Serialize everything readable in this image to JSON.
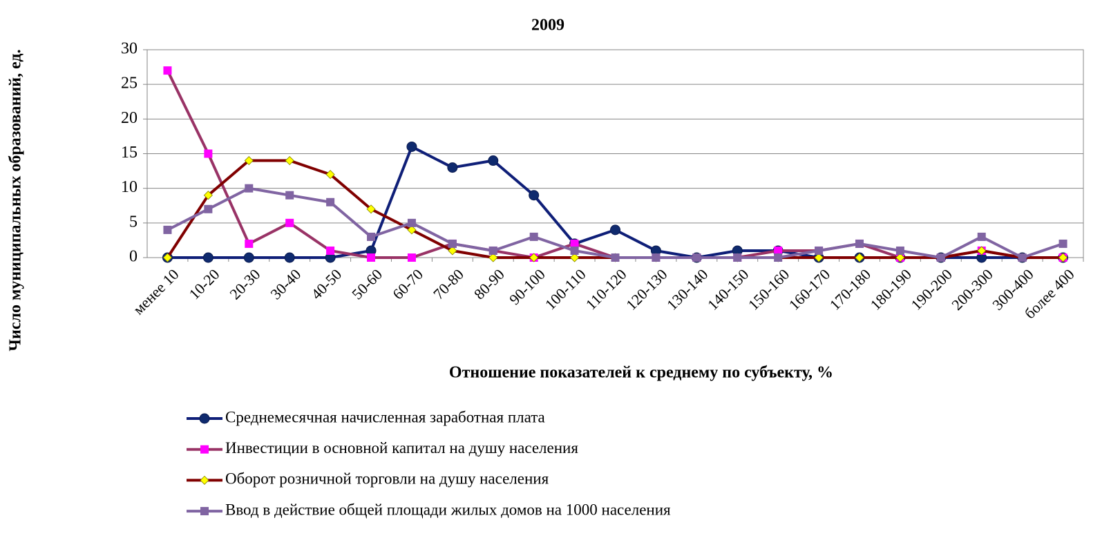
{
  "chart_data": {
    "type": "line",
    "title": "2009",
    "x_label": "Отношение показателей к среднему по субъекту, %",
    "y_label": "Число муниципальных образований, ед.",
    "categories": [
      "менее 10",
      "10-20",
      "20-30",
      "30-40",
      "40-50",
      "50-60",
      "60-70",
      "70-80",
      "80-90",
      "90-100",
      "100-110",
      "110-120",
      "120-130",
      "130-140",
      "140-150",
      "150-160",
      "160-170",
      "170-180",
      "180-190",
      "190-200",
      "200-300",
      "300-400",
      "более 400"
    ],
    "ylim": [
      0,
      30
    ],
    "yticks": [
      0,
      5,
      10,
      15,
      20,
      25,
      30
    ],
    "grid": true,
    "series": [
      {
        "name": "Среднемесячная начисленная заработная плата",
        "color": "#0f1f78",
        "marker": "circle",
        "marker_color": "#0f2a6e",
        "values": [
          0,
          0,
          0,
          0,
          0,
          1,
          16,
          13,
          14,
          9,
          2,
          4,
          1,
          0,
          1,
          1,
          0,
          0,
          0,
          0,
          0,
          0,
          0
        ]
      },
      {
        "name": "Инвестиции в основной капитал на душу населения",
        "color": "#993366",
        "marker": "square",
        "marker_color": "#ff00ff",
        "values": [
          27,
          15,
          2,
          5,
          1,
          0,
          0,
          2,
          1,
          0,
          2,
          0,
          0,
          0,
          0,
          1,
          1,
          2,
          0,
          0,
          1,
          0,
          0
        ]
      },
      {
        "name": "Оборот розничной торговли на душу населения",
        "color": "#800000",
        "marker": "diamond",
        "marker_color": "#ffff00",
        "values": [
          0,
          9,
          14,
          14,
          12,
          7,
          4,
          1,
          0,
          0,
          0,
          0,
          0,
          0,
          0,
          0,
          0,
          0,
          0,
          0,
          1,
          0,
          0
        ]
      },
      {
        "name": "Ввод в действие общей площади жилых домов на 1000 населения",
        "color": "#8064a2",
        "marker": "square",
        "marker_color": "#8064a2",
        "values": [
          4,
          7,
          10,
          9,
          8,
          3,
          5,
          2,
          1,
          3,
          1,
          0,
          0,
          0,
          0,
          0,
          1,
          2,
          1,
          0,
          3,
          0,
          2
        ]
      }
    ]
  }
}
